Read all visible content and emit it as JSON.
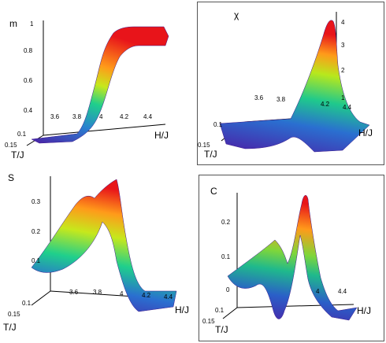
{
  "chart_data": [
    {
      "type": "surface3d",
      "zlabel": "m",
      "xlabel": "H/J",
      "ylabel": "T/J",
      "x_ticks": [
        "3.6",
        "3.8",
        "4",
        "4.2",
        "4.4"
      ],
      "y_ticks": [
        "0.1",
        "0.15"
      ],
      "z_ticks": [
        "0.4",
        "0.6",
        "0.8",
        "1"
      ],
      "x": [
        3.5,
        3.6,
        3.7,
        3.8,
        3.9,
        4.0,
        4.1,
        4.2,
        4.3,
        4.4
      ],
      "series": [
        {
          "values": [
            0.02,
            0.05,
            0.12,
            0.24,
            0.42,
            0.62,
            0.82,
            0.93,
            0.97,
            0.98
          ]
        }
      ]
    },
    {
      "type": "surface3d",
      "zlabel": "χ",
      "xlabel": "H/J",
      "ylabel": "T/J",
      "x_ticks": [
        "3.6",
        "3.8",
        "4.2",
        "4.4"
      ],
      "y_ticks": [
        "0.1",
        "0.15"
      ],
      "z_ticks": [
        "1",
        "2",
        "3",
        "4"
      ],
      "x": [
        3.5,
        3.6,
        3.7,
        3.8,
        3.9,
        4.0,
        4.05,
        4.1,
        4.2,
        4.3,
        4.4
      ],
      "series": [
        {
          "values": [
            0.1,
            0.2,
            0.5,
            1.0,
            1.8,
            3.0,
            4.3,
            3.2,
            1.0,
            0.3,
            0.1
          ]
        }
      ]
    },
    {
      "type": "surface3d",
      "zlabel": "S",
      "xlabel": "H/J",
      "ylabel": "T/J",
      "x_ticks": [
        "3.6",
        "3.8",
        "4",
        "4.2",
        "4.4"
      ],
      "y_ticks": [
        "0.1",
        "0.15"
      ],
      "z_ticks": [
        "0.1",
        "0.2",
        "0.3"
      ],
      "x": [
        3.4,
        3.5,
        3.6,
        3.7,
        3.8,
        3.9,
        4.0,
        4.1,
        4.2,
        4.3,
        4.4
      ],
      "series": [
        {
          "values": [
            0.08,
            0.12,
            0.17,
            0.22,
            0.28,
            0.33,
            0.3,
            0.15,
            0.05,
            0.02,
            0.01
          ]
        }
      ]
    },
    {
      "type": "surface3d",
      "zlabel": "C",
      "xlabel": "H/J",
      "ylabel": "T/J",
      "x_ticks": [
        "4",
        "4.4"
      ],
      "y_ticks": [
        "0.1",
        "0.15"
      ],
      "z_ticks": [
        "0",
        "0.1",
        "0.2"
      ],
      "x": [
        3.4,
        3.5,
        3.6,
        3.7,
        3.8,
        3.9,
        4.0,
        4.05,
        4.1,
        4.2,
        4.3,
        4.4
      ],
      "series": [
        {
          "values": [
            0.05,
            0.08,
            0.12,
            0.14,
            0.0,
            -0.05,
            0.1,
            0.27,
            0.15,
            0.05,
            0.02,
            0.01
          ]
        }
      ]
    }
  ]
}
